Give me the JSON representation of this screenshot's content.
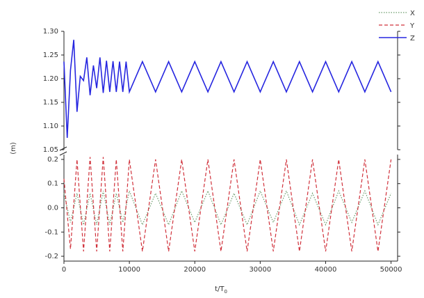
{
  "chart_data": {
    "type": "line",
    "xlabel": "t/T",
    "xlabel_sub": "0",
    "ylabel": "(m)",
    "x_range": [
      0,
      51000
    ],
    "x_ticks": [
      0,
      10000,
      20000,
      30000,
      40000,
      50000
    ],
    "x_tick_labels": [
      "0",
      "10000",
      "20000",
      "30000",
      "40000",
      "50000"
    ],
    "grid": false,
    "legend_position": "top-right",
    "colors": {
      "X": "#6a9a6a",
      "Y": "#d0303a",
      "Z": "#2626e0"
    },
    "panels": [
      {
        "name": "upper",
        "y_range": [
          1.05,
          1.3
        ],
        "y_ticks": [
          1.05,
          1.1,
          1.15,
          1.2,
          1.25,
          1.3
        ],
        "y_tick_labels": [
          "1.05",
          "1.10",
          "1.15",
          "1.20",
          "1.25",
          "1.30"
        ]
      },
      {
        "name": "lower",
        "y_range": [
          -0.22,
          0.22
        ],
        "y_ticks": [
          -0.2,
          -0.1,
          0.0,
          0.1,
          0.2
        ],
        "y_tick_labels": [
          "-0.2",
          "-0.1",
          "0.0",
          "0.1",
          "0.2"
        ]
      }
    ],
    "series": [
      {
        "name": "X",
        "panel": "lower",
        "style": "dotted",
        "x": [
          0,
          1000,
          2000,
          3000,
          4000,
          5000,
          6000,
          7000,
          8000,
          9000,
          10000,
          12000,
          14000,
          16000,
          18000,
          20000,
          22000,
          24000,
          26000,
          28000,
          30000,
          32000,
          34000,
          36000,
          38000,
          40000,
          42000,
          44000,
          46000,
          48000,
          50000
        ],
        "values": [
          0.06,
          -0.06,
          0.06,
          -0.07,
          0.06,
          -0.07,
          0.07,
          -0.07,
          0.06,
          -0.06,
          0.07,
          -0.07,
          0.06,
          -0.07,
          0.07,
          -0.06,
          0.07,
          -0.07,
          0.06,
          -0.07,
          0.07,
          -0.06,
          0.07,
          -0.07,
          0.06,
          -0.07,
          0.07,
          -0.06,
          0.07,
          -0.07,
          0.06
        ]
      },
      {
        "name": "Y",
        "panel": "lower",
        "style": "dashed",
        "x": [
          0,
          1000,
          2000,
          3000,
          4000,
          5000,
          6000,
          7000,
          8000,
          9000,
          10000,
          12000,
          14000,
          16000,
          18000,
          20000,
          22000,
          24000,
          26000,
          28000,
          30000,
          32000,
          34000,
          36000,
          38000,
          40000,
          42000,
          44000,
          46000,
          48000,
          50000
        ],
        "values": [
          0.12,
          -0.17,
          0.2,
          -0.18,
          0.21,
          -0.18,
          0.21,
          -0.18,
          0.2,
          -0.18,
          0.2,
          -0.18,
          0.2,
          -0.18,
          0.2,
          -0.18,
          0.2,
          -0.18,
          0.2,
          -0.18,
          0.2,
          -0.18,
          0.2,
          -0.18,
          0.2,
          -0.18,
          0.2,
          -0.18,
          0.2,
          -0.18,
          0.2
        ]
      },
      {
        "name": "Z",
        "panel": "upper",
        "style": "solid",
        "x": [
          0,
          500,
          1000,
          1500,
          2000,
          2500,
          3000,
          3500,
          4000,
          4500,
          5000,
          5500,
          6000,
          6500,
          7000,
          7500,
          8000,
          8500,
          9000,
          9500,
          10000,
          12000,
          14000,
          16000,
          18000,
          20000,
          22000,
          24000,
          26000,
          28000,
          30000,
          32000,
          34000,
          36000,
          38000,
          40000,
          42000,
          44000,
          46000,
          48000,
          50000
        ],
        "values": [
          1.236,
          1.075,
          1.218,
          1.282,
          1.13,
          1.205,
          1.196,
          1.245,
          1.165,
          1.228,
          1.18,
          1.245,
          1.17,
          1.238,
          1.172,
          1.237,
          1.172,
          1.236,
          1.172,
          1.236,
          1.172,
          1.236,
          1.172,
          1.236,
          1.172,
          1.236,
          1.172,
          1.236,
          1.172,
          1.236,
          1.172,
          1.236,
          1.172,
          1.236,
          1.172,
          1.236,
          1.172,
          1.236,
          1.172,
          1.236,
          1.172
        ]
      }
    ],
    "legend": [
      {
        "label": "X",
        "series": "X"
      },
      {
        "label": "Y",
        "series": "Y"
      },
      {
        "label": "Z",
        "series": "Z"
      }
    ]
  }
}
